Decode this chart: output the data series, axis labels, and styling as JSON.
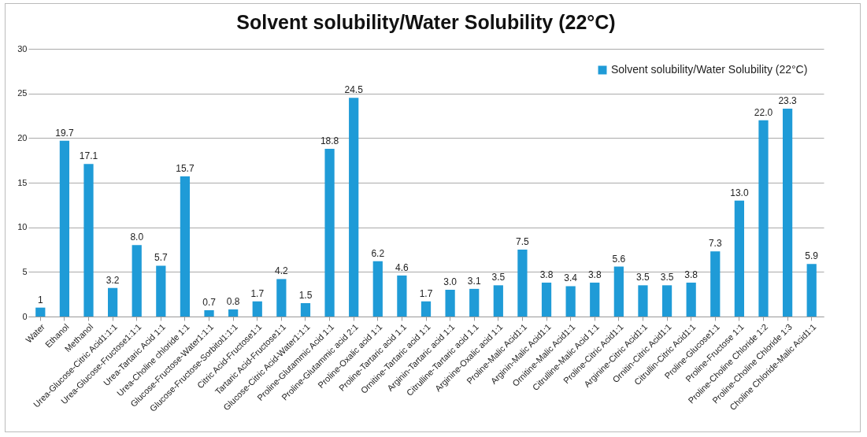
{
  "chart_data": {
    "type": "bar",
    "title": "Solvent solubility/Water Solubility (22°C)",
    "categories": [
      "Water",
      "Ethanol",
      "Methanol",
      "Urea-Glucose-Citric Acid1:1:1",
      "Urea-Glucose-Fructose1:1:1",
      "Urea-Tartaric Acid 1:1",
      "Urea-Choline chloride 1:1",
      "Glucose-Fructose-Water1:1:1",
      "Glucose-Fructose-Sorbitol1:1:1",
      "Citric Acid-Fructose1:1",
      "Tartaric Acid-Fructose1:1",
      "Glucose-Citric Acid-Water1:1:1",
      "Proline-Glutammic Acid 1:1",
      "Proline-Glutammic acid 2:1",
      "Proline-Oxalic acid 1:1",
      "Proline-Tartaric acid 1.1",
      "Ornitine-Tartaric acid 1:1",
      "Arginin-Tartaric acid 1:1",
      "Citrulline-Tartaric acid 1.1",
      "Arginine-Oxalic acid 1:1",
      "Proline-Malic Acid1:1",
      "Arginin-Malic Acid1:1",
      "Ornitine-Malic Acid1:1",
      "Citrulline-Malic Acid 1:1",
      "Proline-Citric Acid1:1",
      "Arginine-Citric Acid1:1",
      "Ornitin-Citric Acid1:1",
      "Citrullin-Citric Acid1:1",
      "Proline-Glucose1:1",
      "Proline-Fructose 1:1",
      "Proline-Choline Chloride 1:2",
      "Proline-Choline Chloride 1:3",
      "Choline Chloride-Malic Acid1:1"
    ],
    "series": [
      {
        "name": "Solvent solubility/Water Solubility (22°C)",
        "color": "#1f9bd7",
        "values": [
          1,
          19.7,
          17.1,
          3.2,
          8.0,
          5.7,
          15.7,
          0.7,
          0.8,
          1.7,
          4.2,
          1.5,
          18.8,
          24.5,
          6.2,
          4.6,
          1.7,
          3.0,
          3.1,
          3.5,
          7.5,
          3.8,
          3.4,
          3.8,
          5.6,
          3.5,
          3.5,
          3.8,
          7.3,
          13.0,
          22.0,
          23.3,
          5.9
        ],
        "value_labels": [
          "1",
          "19.7",
          "17.1",
          "3.2",
          "8.0",
          "5.7",
          "15.7",
          "0.7",
          "0.8",
          "1.7",
          "4.2",
          "1.5",
          "18.8",
          "24.5",
          "6.2",
          "4.6",
          "1.7",
          "3.0",
          "3.1",
          "3.5",
          "7.5",
          "3.8",
          "3.4",
          "3.8",
          "5.6",
          "3.5",
          "3.5",
          "3.8",
          "7.3",
          "13.0",
          "22.0",
          "23.3",
          "5.9"
        ]
      }
    ],
    "ylim": [
      0,
      30
    ],
    "yticks": [
      0,
      5,
      10,
      15,
      20,
      25,
      30
    ],
    "grid": "y",
    "legend": "top right"
  }
}
